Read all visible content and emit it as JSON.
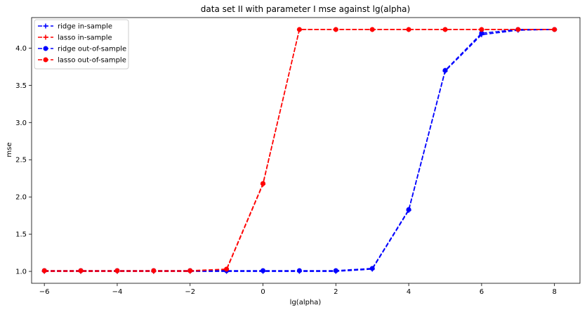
{
  "chart_data": {
    "type": "line",
    "title": "data set II with parameter I mse against lg(alpha)",
    "xlabel": "lg(alpha)",
    "ylabel": "mse",
    "xlim": [
      -6.35,
      8.7
    ],
    "ylim": [
      0.84,
      4.41
    ],
    "xticks": [
      -6,
      -4,
      -2,
      0,
      2,
      4,
      6,
      8
    ],
    "yticks": [
      1.0,
      1.5,
      2.0,
      2.5,
      3.0,
      3.5,
      4.0
    ],
    "grid": false,
    "legend_position": "top-left",
    "x": [
      -6,
      -5,
      -4,
      -3,
      -2,
      -1,
      0,
      1,
      2,
      3,
      4,
      5,
      6,
      7,
      8
    ],
    "series": [
      {
        "name": "ridge in-sample",
        "color": "#0000ff",
        "marker": "plus",
        "values": [
          1.0,
          1.0,
          1.0,
          1.0,
          1.0,
          1.0,
          1.0,
          1.0,
          1.0,
          1.03,
          1.82,
          3.69,
          4.18,
          4.24,
          4.25
        ]
      },
      {
        "name": "lasso in-sample",
        "color": "#ff0000",
        "marker": "plus",
        "values": [
          1.0,
          1.0,
          1.0,
          1.0,
          1.0,
          1.02,
          2.17,
          4.25,
          4.25,
          4.25,
          4.25,
          4.25,
          4.25,
          4.25,
          4.25
        ]
      },
      {
        "name": "ridge out-of-sample",
        "color": "#0000ff",
        "marker": "circle",
        "values": [
          1.01,
          1.01,
          1.01,
          1.01,
          1.01,
          1.01,
          1.01,
          1.01,
          1.01,
          1.04,
          1.83,
          3.7,
          4.2,
          4.25,
          4.25
        ]
      },
      {
        "name": "lasso out-of-sample",
        "color": "#ff0000",
        "marker": "circle",
        "values": [
          1.01,
          1.01,
          1.01,
          1.01,
          1.01,
          1.03,
          2.18,
          4.25,
          4.25,
          4.25,
          4.25,
          4.25,
          4.25,
          4.25,
          4.25
        ]
      }
    ]
  }
}
